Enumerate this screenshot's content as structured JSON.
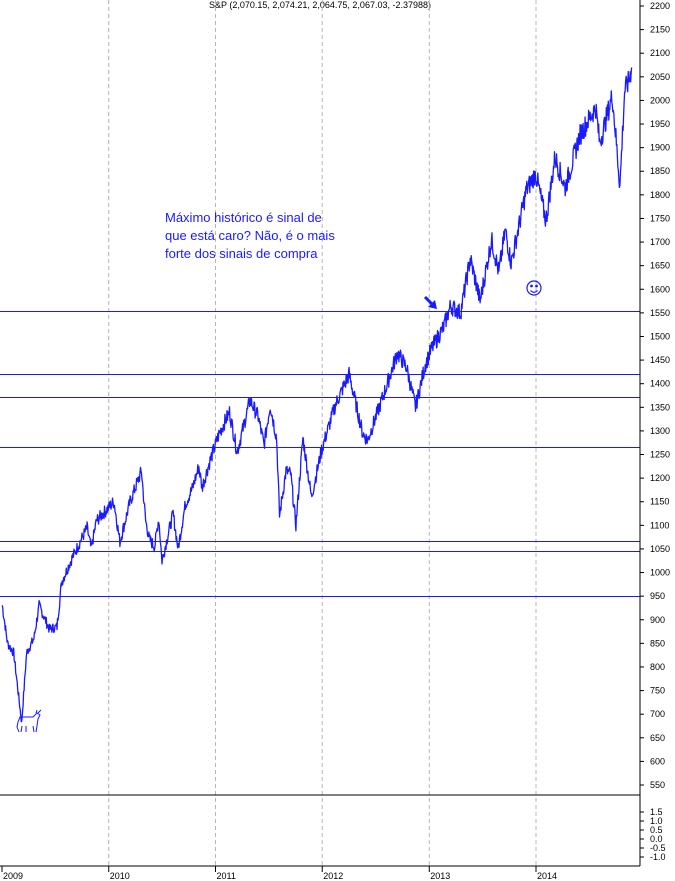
{
  "chart_data": {
    "type": "line",
    "title": "S&P (2,070.15, 2,074.21, 2,064.75, 2,067.03, -2.37988)",
    "ylim": [
      -1.0,
      2200
    ],
    "y_ticks_upper": [
      "550",
      "600",
      "650",
      "700",
      "750",
      "800",
      "850",
      "900",
      "950",
      "1000",
      "1050",
      "1100",
      "1150",
      "1200",
      "1250",
      "1300",
      "1350",
      "1400",
      "1450",
      "1500",
      "1550",
      "1600",
      "1650",
      "1700",
      "1750",
      "1800",
      "1850",
      "1900",
      "1950",
      "2000",
      "2050",
      "2100",
      "2150",
      "2200"
    ],
    "y_ticks_lower": [
      "1.5",
      "1.0",
      "0.5",
      "0.0",
      "-0.5",
      "-1.0"
    ],
    "x_ticks": [
      "2009",
      "2010",
      "2011",
      "2012",
      "2013",
      "2014"
    ],
    "x_range": [
      "2009-01-01",
      "2014-12-01"
    ],
    "horizontal_lines": [
      1555,
      1420,
      1372,
      1265,
      1067,
      1045,
      950
    ],
    "annotation": [
      "Máximo histórico é sinal de",
      "que está caro? Não, é o mais",
      "forte dos sinais de compra"
    ],
    "annotation_icons": [
      "down-right-arrow-icon",
      "smiley-icon",
      "bull-icon"
    ],
    "colors": {
      "series": "#1a1aff",
      "lines": "#1a1aff",
      "annotation": "#1a1aff"
    },
    "series": [
      {
        "x": [
          "2009-01-02",
          "2009-01-20",
          "2009-02-10",
          "2009-03-06",
          "2009-03-09",
          "2009-03-26",
          "2009-04-20",
          "2009-05-08",
          "2009-06-12",
          "2009-07-08",
          "2009-07-24",
          "2009-08-28",
          "2009-10-19",
          "2009-11-02",
          "2009-11-20",
          "2010-01-19",
          "2010-02-08",
          "2010-03-15",
          "2010-04-23",
          "2010-05-07",
          "2010-05-20",
          "2010-06-07",
          "2010-06-21",
          "2010-07-02",
          "2010-08-09",
          "2010-08-26",
          "2010-09-20",
          "2010-10-15",
          "2010-11-05",
          "2010-11-16",
          "2010-12-15",
          "2011-01-14",
          "2011-02-18",
          "2011-03-16",
          "2011-04-29",
          "2011-05-27",
          "2011-06-16",
          "2011-07-07",
          "2011-07-29",
          "2011-08-08",
          "2011-08-30",
          "2011-09-15",
          "2011-10-03",
          "2011-10-27",
          "2011-11-25",
          "2011-12-30",
          "2012-02-15",
          "2012-04-02",
          "2012-05-18",
          "2012-06-04",
          "2012-07-31",
          "2012-09-14",
          "2012-10-15",
          "2012-11-15",
          "2012-12-18",
          "2013-01-10",
          "2013-02-19",
          "2013-03-15",
          "2013-04-18",
          "2013-05-21",
          "2013-06-24",
          "2013-08-02",
          "2013-08-27",
          "2013-09-18",
          "2013-10-08",
          "2013-11-29",
          "2013-12-31",
          "2014-02-04",
          "2014-03-07",
          "2014-04-11",
          "2014-05-30",
          "2014-07-24",
          "2014-08-07",
          "2014-09-19",
          "2014-10-15",
          "2014-10-31",
          "2014-11-14",
          "2014-11-24"
        ],
        "y": [
          931,
          850,
          830,
          700,
          680,
          830,
          860,
          930,
          880,
          885,
          980,
          1030,
          1095,
          1050,
          1110,
          1150,
          1065,
          1150,
          1215,
          1110,
          1070,
          1055,
          1115,
          1025,
          1125,
          1050,
          1145,
          1180,
          1225,
          1180,
          1240,
          1295,
          1340,
          1255,
          1365,
          1330,
          1270,
          1355,
          1285,
          1120,
          1215,
          1210,
          1100,
          1285,
          1160,
          1260,
          1355,
          1420,
          1295,
          1280,
          1380,
          1465,
          1435,
          1350,
          1440,
          1475,
          1520,
          1565,
          1550,
          1665,
          1575,
          1705,
          1635,
          1725,
          1655,
          1810,
          1845,
          1745,
          1880,
          1815,
          1925,
          1985,
          1910,
          2010,
          1820,
          2020,
          2040,
          2070
        ]
      }
    ]
  }
}
